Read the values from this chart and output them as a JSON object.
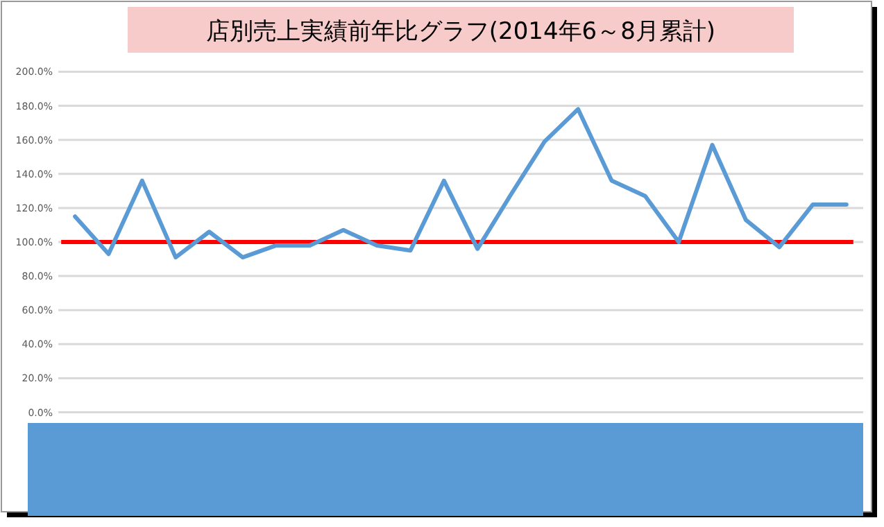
{
  "chart_data": {
    "type": "line",
    "title": "店別売上実績前年比グラフ(2014年6～8月累計)",
    "categories": [
      null,
      null,
      null,
      null,
      null,
      null,
      null,
      null,
      null,
      null,
      null,
      null,
      null,
      null,
      null,
      null,
      null,
      null,
      null,
      null,
      null,
      null,
      null,
      null
    ],
    "series": [
      {
        "color": "#5b9bd5",
        "values": [
          115,
          93,
          136,
          91,
          106,
          91,
          98,
          98,
          107,
          98,
          95,
          136,
          96,
          128,
          159,
          178,
          136,
          127,
          100,
          157,
          113,
          97,
          122,
          122
        ]
      }
    ],
    "ylim": [
      0,
      200
    ],
    "yticks": [
      {
        "value": 0,
        "label": "0.0%"
      },
      {
        "value": 20,
        "label": "20.0%"
      },
      {
        "value": 40,
        "label": "40.0%"
      },
      {
        "value": 60,
        "label": "60.0%"
      },
      {
        "value": 80,
        "label": "80.0%"
      },
      {
        "value": 100,
        "label": "100.0%"
      },
      {
        "value": 120,
        "label": "120.0%"
      },
      {
        "value": 140,
        "label": "140.0%"
      },
      {
        "value": 160,
        "label": "160.0%"
      },
      {
        "value": 180,
        "label": "180.0%"
      },
      {
        "value": 200,
        "label": "200.0%"
      }
    ],
    "grid": "y",
    "marker": "none",
    "line_style": "solid",
    "tick_labels": "y",
    "ref_lines": [
      {
        "axis": "y",
        "value": 100,
        "color": "#ff0000"
      }
    ]
  }
}
